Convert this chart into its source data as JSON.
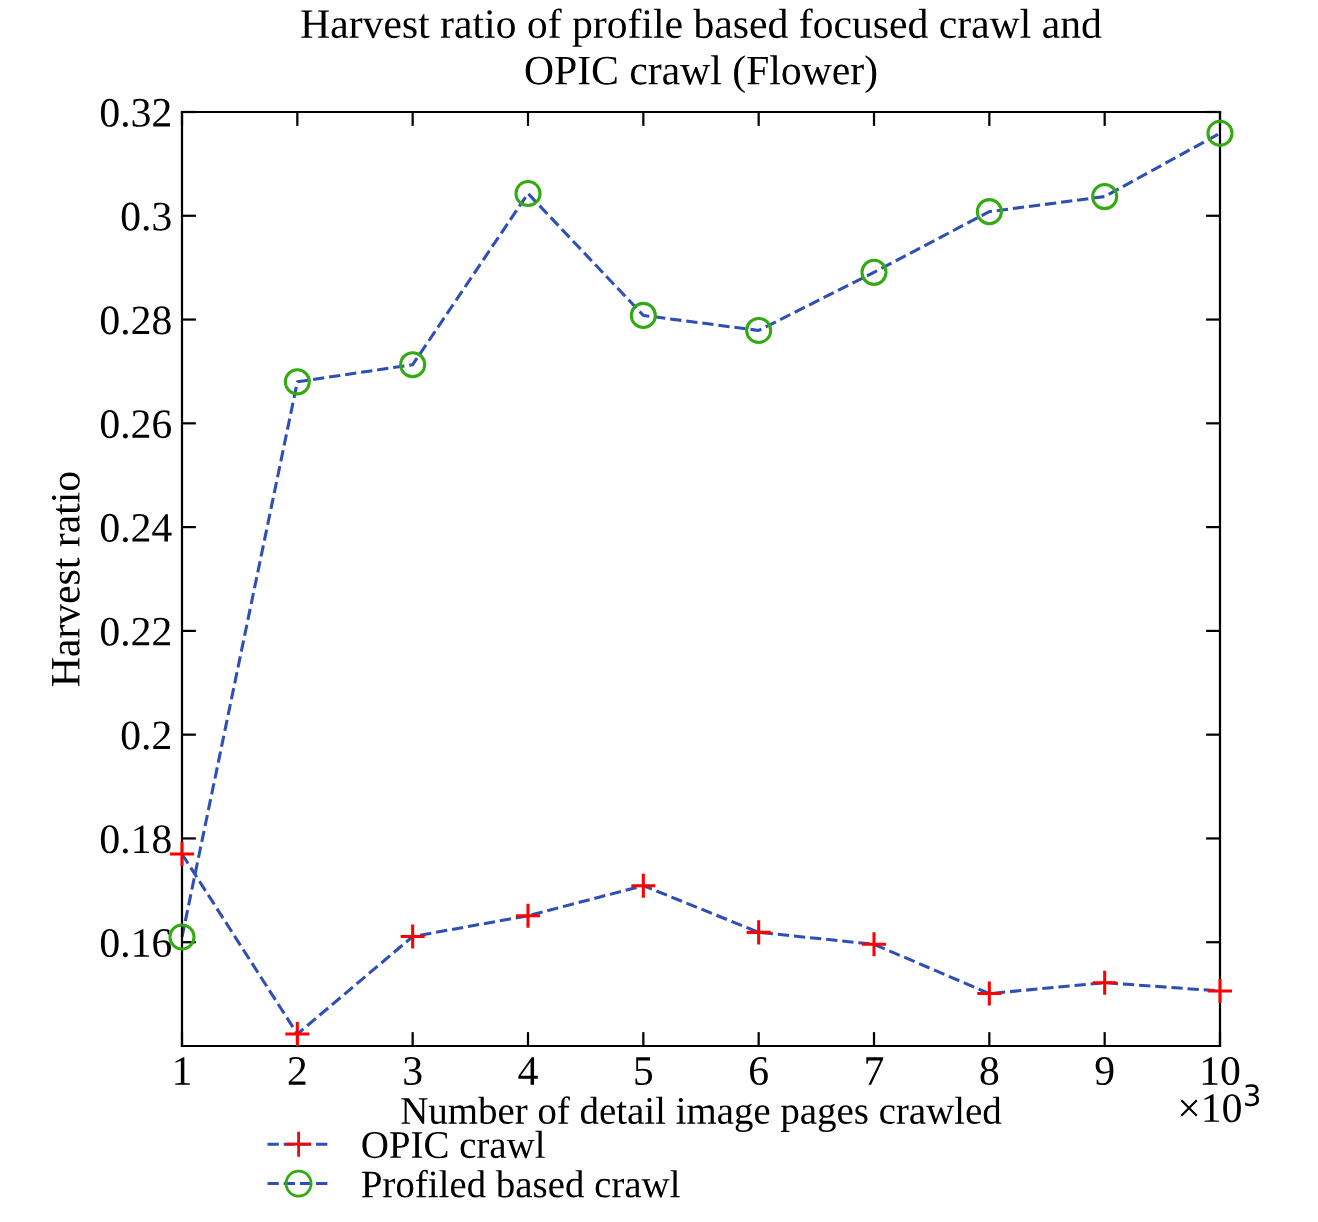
{
  "chart_data": {
    "type": "line",
    "title": "Harvest ratio of profile based focused crawl and\nOPIC crawl (Flower)",
    "xlabel": "Number of detail image pages crawled",
    "ylabel": "Harvest ratio",
    "annotations": [
      "×10$^{3}$"
    ],
    "x": [
      1,
      2,
      3,
      4,
      5,
      6,
      7,
      8,
      9,
      10
    ],
    "series": [
      {
        "name": "OPIC crawl",
        "color": "#2e4fb5",
        "colors": [
          "#ff0000",
          "#ff0000",
          "#ff0000",
          "#ff0000",
          "#ff0000",
          "#ff0000",
          "#ff0000",
          "#ff0000",
          "#ff0000",
          "#ff0000"
        ],
        "marker": "cross",
        "values": [
          0.177,
          0.1423,
          0.1611,
          0.1651,
          0.1709,
          0.1619,
          0.1596,
          0.1501,
          0.1522,
          0.1506
        ]
      },
      {
        "name": "Profiled based crawl",
        "color": "#2e4fb5",
        "colors": [
          "#33aa11",
          "#33aa11",
          "#33aa11",
          "#33aa11",
          "#33aa11",
          "#33aa11",
          "#33aa11",
          "#33aa11",
          "#33aa11",
          "#33aa11"
        ],
        "marker": "circle",
        "values": [
          0.161,
          0.268,
          0.2713,
          0.3043,
          0.2808,
          0.2779,
          0.2891,
          0.3008,
          0.3037,
          0.3159
        ]
      }
    ],
    "xlim": [
      1,
      10
    ],
    "xticks": [
      1,
      2,
      3,
      4,
      5,
      6,
      7,
      8,
      9,
      10
    ],
    "ylim": [
      0.14,
      0.32
    ],
    "yticks": [
      {
        "value": 0.16,
        "label": "0.16"
      },
      {
        "value": 0.18,
        "label": "0.18"
      },
      {
        "value": 0.2,
        "label": "0.2"
      },
      {
        "value": 0.22,
        "label": "0.22"
      },
      {
        "value": 0.24,
        "label": "0.24"
      },
      {
        "value": 0.26,
        "label": "0.26"
      },
      {
        "value": 0.28,
        "label": "0.28"
      },
      {
        "value": 0.3,
        "label": "0.3"
      },
      {
        "value": 0.32,
        "label": "0.32"
      }
    ],
    "grid": false,
    "legend": "bottom left",
    "line_style": "dashed"
  }
}
